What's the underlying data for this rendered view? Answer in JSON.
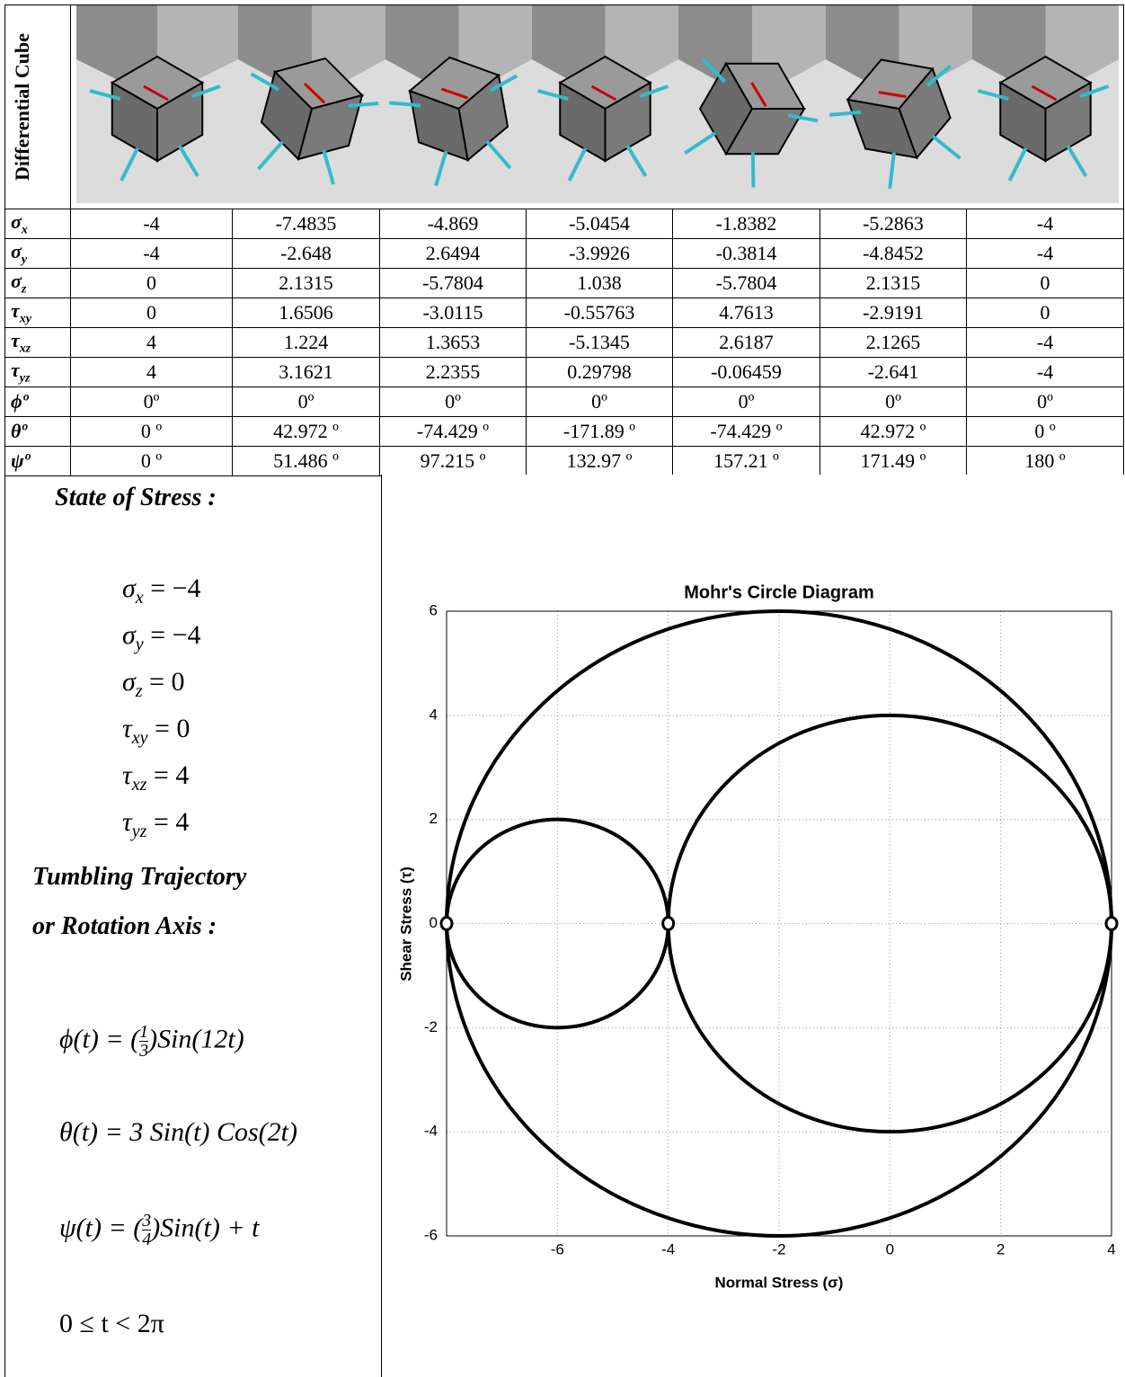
{
  "table": {
    "header_label": "Differential Cube",
    "rows": [
      {
        "symbol": "σ",
        "sub": "x",
        "cells": [
          "-4",
          "-7.4835",
          "-4.869",
          "-5.0454",
          "-1.8382",
          "-5.2863",
          "-4"
        ]
      },
      {
        "symbol": "σ",
        "sub": "y",
        "cells": [
          "-4",
          "-2.648",
          "2.6494",
          "-3.9926",
          "-0.3814",
          "-4.8452",
          "-4"
        ]
      },
      {
        "symbol": "σ",
        "sub": "z",
        "cells": [
          "0",
          "2.1315",
          "-5.7804",
          "1.038",
          "-5.7804",
          "2.1315",
          "0"
        ]
      },
      {
        "symbol": "τ",
        "sub": "xy",
        "cells": [
          "0",
          "1.6506",
          "-3.0115",
          "-0.55763",
          "4.7613",
          "-2.9191",
          "0"
        ]
      },
      {
        "symbol": "τ",
        "sub": "xz",
        "cells": [
          "4",
          "1.224",
          "1.3653",
          "-5.1345",
          "2.6187",
          "2.1265",
          "-4"
        ]
      },
      {
        "symbol": "τ",
        "sub": "yz",
        "cells": [
          "4",
          "3.1621",
          "2.2355",
          "0.29798",
          "-0.06459",
          "-2.641",
          "-4"
        ]
      },
      {
        "symbol": "ϕº",
        "sub": "",
        "cells": [
          "0º",
          "0º",
          "0º",
          "0º",
          "0º",
          "0º",
          "0º"
        ]
      },
      {
        "symbol": "θº",
        "sub": "",
        "cells": [
          "0 º",
          "42.972 º",
          "-74.429 º",
          "-171.89 º",
          "-74.429 º",
          "42.972 º",
          "0 º"
        ]
      },
      {
        "symbol": "ψº",
        "sub": "",
        "cells": [
          "0 º",
          "51.486 º",
          "97.215 º",
          "132.97 º",
          "157.21 º",
          "171.49 º",
          "180 º"
        ]
      }
    ]
  },
  "state_of_stress": {
    "title": "State of Stress :",
    "equations": [
      {
        "symbol": "σ",
        "sub": "x",
        "rhs": "= −4"
      },
      {
        "symbol": "σ",
        "sub": "y",
        "rhs": "= −4"
      },
      {
        "symbol": "σ",
        "sub": "z",
        "rhs": "= 0"
      },
      {
        "symbol": "τ",
        "sub": "xy",
        "rhs": "= 0"
      },
      {
        "symbol": "τ",
        "sub": "xz",
        "rhs": "= 4"
      },
      {
        "symbol": "τ",
        "sub": "yz",
        "rhs": "= 4"
      }
    ]
  },
  "trajectory": {
    "title_lines": [
      "Tumbling Trajectory",
      "or Rotation Axis :"
    ],
    "equations": [
      {
        "lhs": "ϕ(t) = (",
        "num": "1",
        "den": "3",
        "rhs": ")Sin(12t)"
      },
      {
        "lhs": "θ(t) = 3 Sin(t) Cos(2t)",
        "num": "",
        "den": "",
        "rhs": ""
      },
      {
        "lhs": "ψ(t) = (",
        "num": "3",
        "den": "4",
        "rhs": ")Sin(t) + t"
      }
    ],
    "range": "0 ≤ t < 2π"
  },
  "chart_data": {
    "type": "mohr",
    "title": "Mohr's Circle Diagram",
    "xlabel": "Normal Stress (σ)",
    "ylabel": "Shear Stress (τ)",
    "principal_stresses": [
      -8,
      -4,
      4
    ],
    "color": "#000000",
    "xlim": [
      -8,
      4
    ],
    "ylim": [
      -6,
      6
    ],
    "xticks": [
      -6,
      -4,
      -2,
      0,
      2,
      4
    ],
    "yticks": [
      -6,
      -4,
      -2,
      0,
      2,
      4,
      6
    ],
    "grid": true
  }
}
